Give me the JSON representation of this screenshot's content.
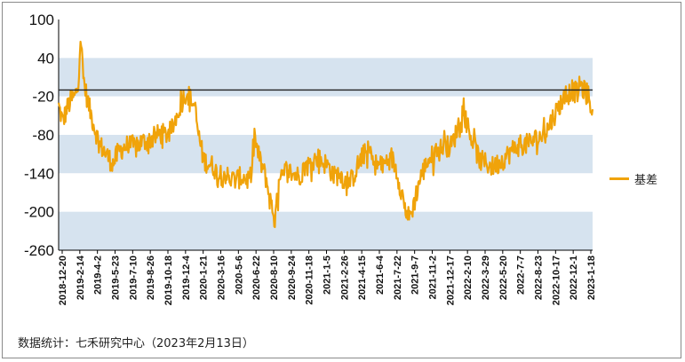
{
  "chart_data": {
    "type": "line",
    "series": [
      {
        "name": "基差",
        "color": "#f0a30a"
      }
    ],
    "yticks": [
      100,
      40,
      -20,
      -80,
      -140,
      -200,
      -260
    ],
    "ylim": [
      -260,
      100
    ],
    "reference_line": -10,
    "band_color": "#d6e3ef",
    "xticks": [
      "2018-12-20",
      "2019-2-14",
      "2019-4-2",
      "2019-5-23",
      "2019-7-10",
      "2019-8-26",
      "2019-10-18",
      "2019-12-4",
      "2020-1-21",
      "2020-3-16",
      "2020-5-6",
      "2020-6-22",
      "2020-8-10",
      "2020-9-24",
      "2020-11-18",
      "2021-1-5",
      "2021-2-26",
      "2021-4-15",
      "2021-6-4",
      "2021-7-22",
      "2021-9-7",
      "2021-11-2",
      "2021-12-17",
      "2022-2-10",
      "2022-3-29",
      "2022-5-20",
      "2022-7-7",
      "2022-8-23",
      "2022-10-17",
      "2022-12-1",
      "2023-1-18"
    ],
    "x_range": [
      "2018-12-20",
      "2023-02-13"
    ],
    "anchors": [
      [
        "2018-12-20",
        -35
      ],
      [
        "2019-01-01",
        -60
      ],
      [
        "2019-01-12",
        -40
      ],
      [
        "2019-01-25",
        -25
      ],
      [
        "2019-02-05",
        -20
      ],
      [
        "2019-02-14",
        5
      ],
      [
        "2019-02-20",
        75
      ],
      [
        "2019-02-28",
        10
      ],
      [
        "2019-03-08",
        -15
      ],
      [
        "2019-03-18",
        -40
      ],
      [
        "2019-04-02",
        -70
      ],
      [
        "2019-04-15",
        -95
      ],
      [
        "2019-04-28",
        -105
      ],
      [
        "2019-05-10",
        -115
      ],
      [
        "2019-05-23",
        -125
      ],
      [
        "2019-06-05",
        -110
      ],
      [
        "2019-06-20",
        -100
      ],
      [
        "2019-07-10",
        -95
      ],
      [
        "2019-07-28",
        -100
      ],
      [
        "2019-08-10",
        -92
      ],
      [
        "2019-08-26",
        -90
      ],
      [
        "2019-09-15",
        -85
      ],
      [
        "2019-10-05",
        -78
      ],
      [
        "2019-10-18",
        -80
      ],
      [
        "2019-11-05",
        -75
      ],
      [
        "2019-11-20",
        -50
      ],
      [
        "2019-12-04",
        -30
      ],
      [
        "2019-12-15",
        -15
      ],
      [
        "2019-12-25",
        -20
      ],
      [
        "2020-01-10",
        -35
      ],
      [
        "2020-01-21",
        -80
      ],
      [
        "2020-02-05",
        -120
      ],
      [
        "2020-02-20",
        -125
      ],
      [
        "2020-03-05",
        -130
      ],
      [
        "2020-03-16",
        -145
      ],
      [
        "2020-04-05",
        -140
      ],
      [
        "2020-04-20",
        -150
      ],
      [
        "2020-05-06",
        -150
      ],
      [
        "2020-05-25",
        -145
      ],
      [
        "2020-06-08",
        -150
      ],
      [
        "2020-06-22",
        -140
      ],
      [
        "2020-06-28",
        -80
      ],
      [
        "2020-07-08",
        -110
      ],
      [
        "2020-07-20",
        -130
      ],
      [
        "2020-08-01",
        -150
      ],
      [
        "2020-08-10",
        -180
      ],
      [
        "2020-08-18",
        -195
      ],
      [
        "2020-08-25",
        -215
      ],
      [
        "2020-09-05",
        -160
      ],
      [
        "2020-09-24",
        -135
      ],
      [
        "2020-10-15",
        -140
      ],
      [
        "2020-11-01",
        -145
      ],
      [
        "2020-11-18",
        -130
      ],
      [
        "2020-12-05",
        -125
      ],
      [
        "2020-12-20",
        -115
      ],
      [
        "2021-01-05",
        -120
      ],
      [
        "2021-01-25",
        -130
      ],
      [
        "2021-02-10",
        -145
      ],
      [
        "2021-02-26",
        -140
      ],
      [
        "2021-03-15",
        -155
      ],
      [
        "2021-04-01",
        -150
      ],
      [
        "2021-04-15",
        -130
      ],
      [
        "2021-05-05",
        -110
      ],
      [
        "2021-05-20",
        -105
      ],
      [
        "2021-06-04",
        -125
      ],
      [
        "2021-06-25",
        -130
      ],
      [
        "2021-07-10",
        -120
      ],
      [
        "2021-07-22",
        -115
      ],
      [
        "2021-08-05",
        -135
      ],
      [
        "2021-08-20",
        -170
      ],
      [
        "2021-09-02",
        -200
      ],
      [
        "2021-09-10",
        -210
      ],
      [
        "2021-09-20",
        -195
      ],
      [
        "2021-10-10",
        -150
      ],
      [
        "2021-11-02",
        -120
      ],
      [
        "2021-11-20",
        -110
      ],
      [
        "2021-12-05",
        -105
      ],
      [
        "2021-12-17",
        -95
      ],
      [
        "2022-01-05",
        -100
      ],
      [
        "2022-01-20",
        -80
      ],
      [
        "2022-02-01",
        -55
      ],
      [
        "2022-02-10",
        -40
      ],
      [
        "2022-02-20",
        -60
      ],
      [
        "2022-03-10",
        -90
      ],
      [
        "2022-03-29",
        -120
      ],
      [
        "2022-04-20",
        -125
      ],
      [
        "2022-05-05",
        -130
      ],
      [
        "2022-05-20",
        -125
      ],
      [
        "2022-06-10",
        -115
      ],
      [
        "2022-07-07",
        -100
      ],
      [
        "2022-07-25",
        -95
      ],
      [
        "2022-08-10",
        -95
      ],
      [
        "2022-08-23",
        -90
      ],
      [
        "2022-09-10",
        -85
      ],
      [
        "2022-09-30",
        -80
      ],
      [
        "2022-10-17",
        -60
      ],
      [
        "2022-11-05",
        -40
      ],
      [
        "2022-11-20",
        -25
      ],
      [
        "2022-12-01",
        -20
      ],
      [
        "2022-12-15",
        -10
      ],
      [
        "2023-01-01",
        -15
      ],
      [
        "2023-01-10",
        0
      ],
      [
        "2023-01-18",
        -10
      ],
      [
        "2023-02-01",
        -20
      ],
      [
        "2023-02-13",
        -40
      ]
    ]
  },
  "source_text": "数据统计：七禾研究中心（2023年2月13日）"
}
